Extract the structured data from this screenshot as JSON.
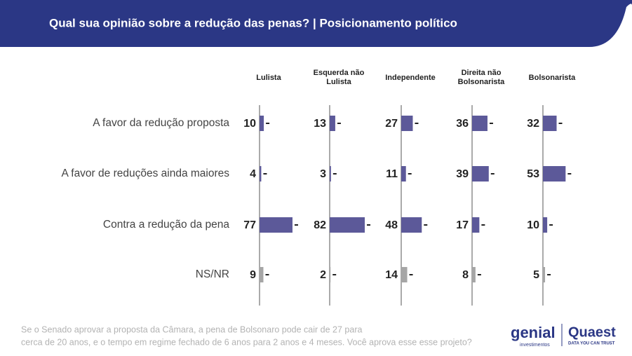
{
  "chart_data": {
    "type": "bar",
    "title": "Qual sua opinião sobre a redução das penas? | Posicionamento político",
    "categories": [
      "A favor da redução proposta",
      "A favor de reduções ainda maiores",
      "Contra a redução da pena",
      "NS/NR"
    ],
    "category_colors": [
      "#5c5999",
      "#5c5999",
      "#5c5999",
      "#a6a6a6"
    ],
    "series": [
      {
        "name": "Lulista",
        "values": [
          10,
          4,
          77,
          9
        ]
      },
      {
        "name": "Esquerda não Lulista",
        "values": [
          13,
          3,
          82,
          2
        ]
      },
      {
        "name": "Independente",
        "values": [
          27,
          11,
          48,
          14
        ]
      },
      {
        "name": "Direita não Bolsonarista",
        "values": [
          36,
          39,
          17,
          8
        ]
      },
      {
        "name": "Bolsonarista",
        "values": [
          32,
          53,
          10,
          5
        ]
      }
    ],
    "xlim": [
      0,
      100
    ],
    "note": [
      "Se o Senado aprovar a proposta da Câmara, a pena de Bolsonaro pode cair de 27 para",
      "cerca de 20 anos, e o tempo em regime fechado de 6 anos para 2 anos e 4 meses. Você aprova esse esse projeto?"
    ]
  },
  "logos": {
    "genial": "genial",
    "genial_sub": "investimentos",
    "quaest": "Quaest",
    "quaest_sub": "DATA YOU CAN TRUST"
  }
}
